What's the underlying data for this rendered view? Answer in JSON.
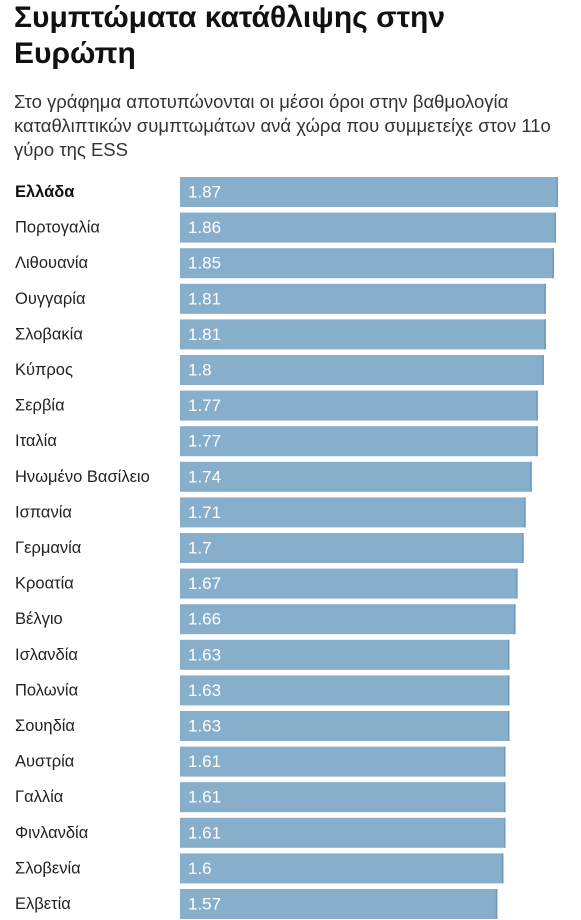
{
  "title": "Συμπτώματα κατάθλιψης στην Ευρώπη",
  "subtitle": "Στο γράφημα αποτυπώνονται οι μέσοι όροι στην βαθμολογία καταθλιπτικών συμπτωμάτων ανά χώρα που συμμετείχε στον 11ο γύρο της ESS",
  "colors": {
    "bar": "#87aecb",
    "bar_edge": "#6f9abb",
    "label_text": "#ffffff"
  },
  "chart_data": {
    "type": "bar",
    "orientation": "horizontal",
    "title": "Συμπτώματα κατάθλιψης στην Ευρώπη",
    "subtitle": "Στο γράφημα αποτυπώνονται οι μέσοι όροι στην βαθμολογία καταθλιπτικών συμπτωμάτων ανά χώρα που συμμετείχε στον 11ο γύρο της ESS",
    "highlight": "Ελλάδα",
    "categories": [
      "Ελλάδα",
      "Πορτογαλία",
      "Λιθουανία",
      "Ουγγαρία",
      "Σλοβακία",
      "Κύπρος",
      "Σερβία",
      "Ιταλία",
      "Ηνωμένο Βασίλειο",
      "Ισπανία",
      "Γερμανία",
      "Κροατία",
      "Βέλγιο",
      "Ισλανδία",
      "Πολωνία",
      "Σουηδία",
      "Αυστρία",
      "Γαλλία",
      "Φινλανδία",
      "Σλοβενία",
      "Ελβετία"
    ],
    "values": [
      1.87,
      1.86,
      1.85,
      1.81,
      1.81,
      1.8,
      1.77,
      1.77,
      1.74,
      1.71,
      1.7,
      1.67,
      1.66,
      1.63,
      1.63,
      1.63,
      1.61,
      1.61,
      1.61,
      1.6,
      1.57
    ],
    "labels": [
      "1.87",
      "1.86",
      "1.85",
      "1.81",
      "1.81",
      "1.8",
      "1.77",
      "1.77",
      "1.74",
      "1.71",
      "1.7",
      "1.67",
      "1.66",
      "1.63",
      "1.63",
      "1.63",
      "1.61",
      "1.61",
      "1.61",
      "1.6",
      "1.57"
    ],
    "xlim": [
      0,
      1.87
    ],
    "grid": false,
    "legend": "none"
  }
}
